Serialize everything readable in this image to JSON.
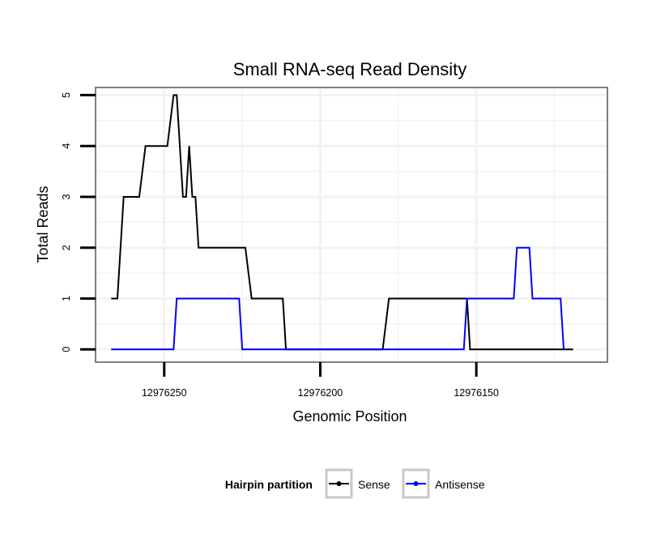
{
  "chart_data": {
    "type": "line",
    "title": "Small RNA-seq Read Density",
    "xlabel": "Genomic Position",
    "ylabel": "Total Reads",
    "x_reversed": true,
    "xlim": [
      12976272,
      12976108
    ],
    "ylim": [
      -0.25,
      5.15
    ],
    "x_ticks": [
      12976250,
      12976200,
      12976150
    ],
    "x_tick_labels": [
      "12976250",
      "12976200",
      "12976150"
    ],
    "y_ticks": [
      0,
      1,
      2,
      3,
      4,
      5
    ],
    "y_tick_labels": [
      "0",
      "1",
      "2",
      "3",
      "4",
      "5"
    ],
    "grid": true,
    "legend": {
      "title": "Hairpin partition",
      "position": "bottom"
    },
    "series": [
      {
        "name": "Sense",
        "color": "#000000",
        "x": [
          12976267,
          12976265,
          12976263,
          12976258,
          12976256,
          12976249,
          12976247,
          12976246,
          12976244,
          12976243,
          12976242,
          12976241,
          12976240,
          12976239,
          12976238,
          12976235,
          12976224,
          12976222,
          12976212,
          12976211,
          12976180,
          12976178,
          12976153,
          12976152,
          12976119
        ],
        "y": [
          1,
          1,
          3,
          3,
          4,
          4,
          5,
          5,
          3,
          3,
          4,
          3,
          3,
          2,
          2,
          2,
          2,
          1,
          1,
          0,
          0,
          1,
          1,
          0,
          0
        ]
      },
      {
        "name": "Antisense",
        "color": "#0000ff",
        "x": [
          12976267,
          12976247,
          12976246,
          12976226,
          12976225,
          12976154,
          12976153,
          12976138,
          12976137,
          12976133,
          12976132,
          12976123,
          12976122
        ],
        "y": [
          0,
          0,
          1,
          1,
          0,
          0,
          1,
          1,
          2,
          2,
          1,
          1,
          0
        ]
      }
    ]
  }
}
